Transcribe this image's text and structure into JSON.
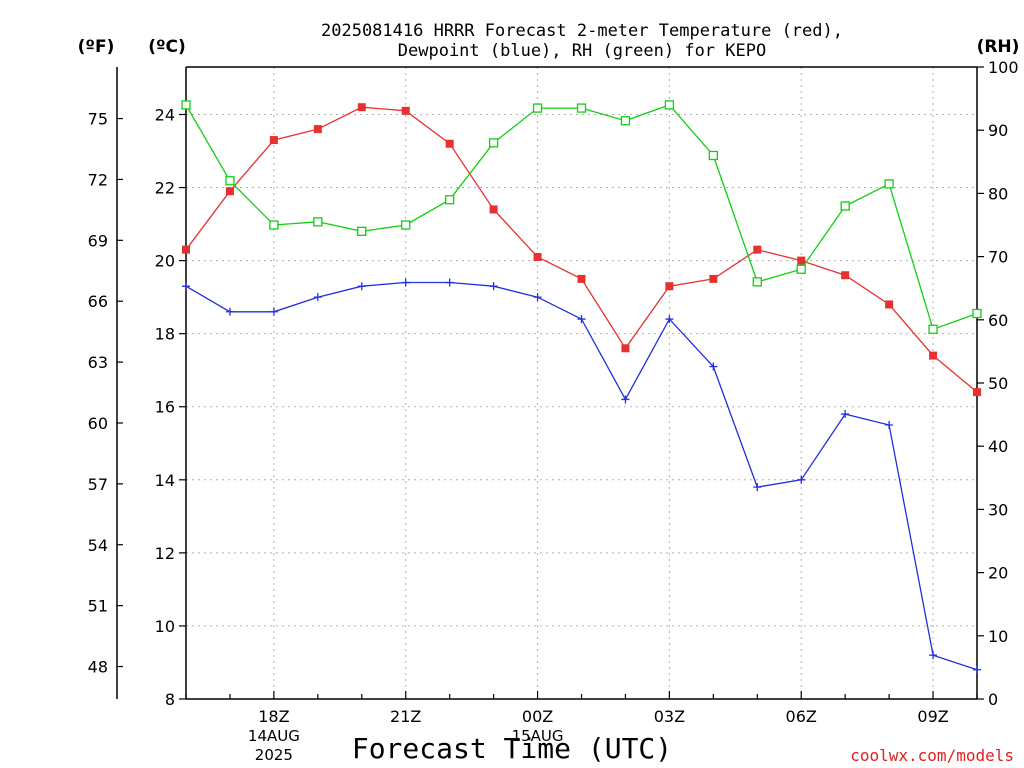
{
  "chart_data": {
    "type": "line",
    "title": [
      "2025081416 HRRR Forecast 2-meter Temperature (red),",
      "Dewpoint (blue), RH (green) for KEPO"
    ],
    "xlabel": "Forecast Time (UTC)",
    "units": {
      "fahrenheit": "(ºF)",
      "celsius": "(ºC)",
      "rh": "(RH)"
    },
    "credit": "coolwx.com/models",
    "x": [
      16,
      17,
      18,
      19,
      20,
      21,
      22,
      23,
      24,
      25,
      26,
      27,
      28,
      29,
      30,
      31,
      32,
      33,
      34
    ],
    "xlim": [
      16,
      34
    ],
    "x_ticks": [
      {
        "x": 18,
        "lines": [
          "18Z",
          "14AUG",
          "2025"
        ]
      },
      {
        "x": 21,
        "lines": [
          "21Z"
        ]
      },
      {
        "x": 24,
        "lines": [
          "00Z",
          "15AUG"
        ]
      },
      {
        "x": 27,
        "lines": [
          "03Z"
        ]
      },
      {
        "x": 30,
        "lines": [
          "06Z"
        ]
      },
      {
        "x": 33,
        "lines": [
          "09Z"
        ]
      }
    ],
    "celsius_axis": {
      "range": [
        8,
        25.3
      ],
      "ticks": [
        8,
        10,
        12,
        14,
        16,
        18,
        20,
        22,
        24
      ]
    },
    "fahrenheit_axis": {
      "ticks": [
        48,
        51,
        54,
        57,
        60,
        63,
        66,
        69,
        72,
        75
      ]
    },
    "rh_axis": {
      "range": [
        0,
        100
      ],
      "ticks": [
        0,
        10,
        20,
        30,
        40,
        50,
        60,
        70,
        80,
        90,
        100
      ]
    },
    "grid": true,
    "series": [
      {
        "name": "Temperature",
        "axis": "celsius",
        "color": "#e83030",
        "marker": "filled-square",
        "values": [
          20.3,
          21.9,
          23.3,
          23.6,
          24.2,
          24.1,
          23.2,
          21.4,
          20.1,
          19.5,
          17.6,
          19.3,
          19.5,
          20.3,
          20.0,
          19.6,
          18.8,
          17.4,
          16.4
        ]
      },
      {
        "name": "Dewpoint",
        "axis": "celsius",
        "color": "#2030e0",
        "marker": "plus",
        "values": [
          19.3,
          18.6,
          18.6,
          19.0,
          19.3,
          19.4,
          19.4,
          19.3,
          19.0,
          18.4,
          16.2,
          18.4,
          17.1,
          13.8,
          14.0,
          15.8,
          15.5,
          9.2,
          8.8
        ]
      },
      {
        "name": "RH",
        "axis": "rh",
        "color": "#10d010",
        "marker": "open-square",
        "values": [
          94,
          82,
          75,
          75.5,
          74,
          75,
          79,
          88,
          93.5,
          93.5,
          91.5,
          94,
          86,
          66,
          68,
          78,
          81.5,
          58.5,
          61
        ]
      }
    ]
  }
}
